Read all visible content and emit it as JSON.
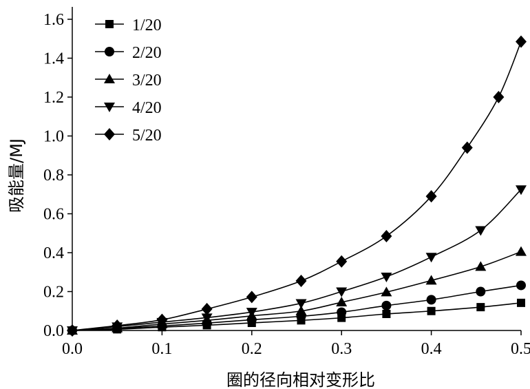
{
  "chart_data": {
    "type": "line",
    "title": "",
    "xlabel": "圈的径向相对变形比",
    "ylabel": "吸能量/MJ",
    "xlim": [
      0.0,
      0.5
    ],
    "ylim": [
      0.0,
      1.6
    ],
    "x_ticks": [
      "0.0",
      "0.1",
      "0.2",
      "0.3",
      "0.4",
      "0.5"
    ],
    "y_ticks": [
      "0.0",
      "0.2",
      "0.4",
      "0.6",
      "0.8",
      "1.0",
      "1.2",
      "1.4",
      "1.6"
    ],
    "grid": false,
    "legend_position": "top-left",
    "series": [
      {
        "name": "1/20",
        "marker": "square",
        "points": [
          [
            0.0,
            0.0
          ],
          [
            0.05,
            0.006
          ],
          [
            0.1,
            0.017
          ],
          [
            0.15,
            0.027
          ],
          [
            0.2,
            0.039
          ],
          [
            0.255,
            0.052
          ],
          [
            0.3,
            0.065
          ],
          [
            0.35,
            0.085
          ],
          [
            0.4,
            0.1
          ],
          [
            0.455,
            0.12
          ],
          [
            0.5,
            0.142
          ]
        ]
      },
      {
        "name": "2/20",
        "marker": "circle",
        "points": [
          [
            0.0,
            0.0
          ],
          [
            0.05,
            0.01
          ],
          [
            0.1,
            0.023
          ],
          [
            0.15,
            0.038
          ],
          [
            0.2,
            0.055
          ],
          [
            0.255,
            0.073
          ],
          [
            0.3,
            0.094
          ],
          [
            0.35,
            0.128
          ],
          [
            0.4,
            0.158
          ],
          [
            0.455,
            0.2
          ],
          [
            0.5,
            0.232
          ]
        ]
      },
      {
        "name": "3/20",
        "marker": "triangle-up",
        "points": [
          [
            0.0,
            0.0
          ],
          [
            0.05,
            0.012
          ],
          [
            0.1,
            0.033
          ],
          [
            0.15,
            0.052
          ],
          [
            0.2,
            0.075
          ],
          [
            0.255,
            0.1
          ],
          [
            0.3,
            0.145
          ],
          [
            0.35,
            0.197
          ],
          [
            0.4,
            0.257
          ],
          [
            0.455,
            0.328
          ],
          [
            0.5,
            0.405
          ]
        ]
      },
      {
        "name": "4/20",
        "marker": "triangle-down",
        "points": [
          [
            0.0,
            0.0
          ],
          [
            0.05,
            0.02
          ],
          [
            0.1,
            0.043
          ],
          [
            0.15,
            0.066
          ],
          [
            0.2,
            0.095
          ],
          [
            0.255,
            0.14
          ],
          [
            0.3,
            0.2
          ],
          [
            0.35,
            0.276
          ],
          [
            0.4,
            0.378
          ],
          [
            0.455,
            0.515
          ],
          [
            0.5,
            0.725
          ]
        ]
      },
      {
        "name": "5/20",
        "marker": "diamond",
        "points": [
          [
            0.0,
            0.0
          ],
          [
            0.05,
            0.025
          ],
          [
            0.1,
            0.055
          ],
          [
            0.15,
            0.11
          ],
          [
            0.2,
            0.172
          ],
          [
            0.255,
            0.255
          ],
          [
            0.3,
            0.355
          ],
          [
            0.35,
            0.485
          ],
          [
            0.4,
            0.69
          ],
          [
            0.44,
            0.94
          ],
          [
            0.475,
            1.2
          ],
          [
            0.5,
            1.485
          ]
        ]
      }
    ]
  }
}
